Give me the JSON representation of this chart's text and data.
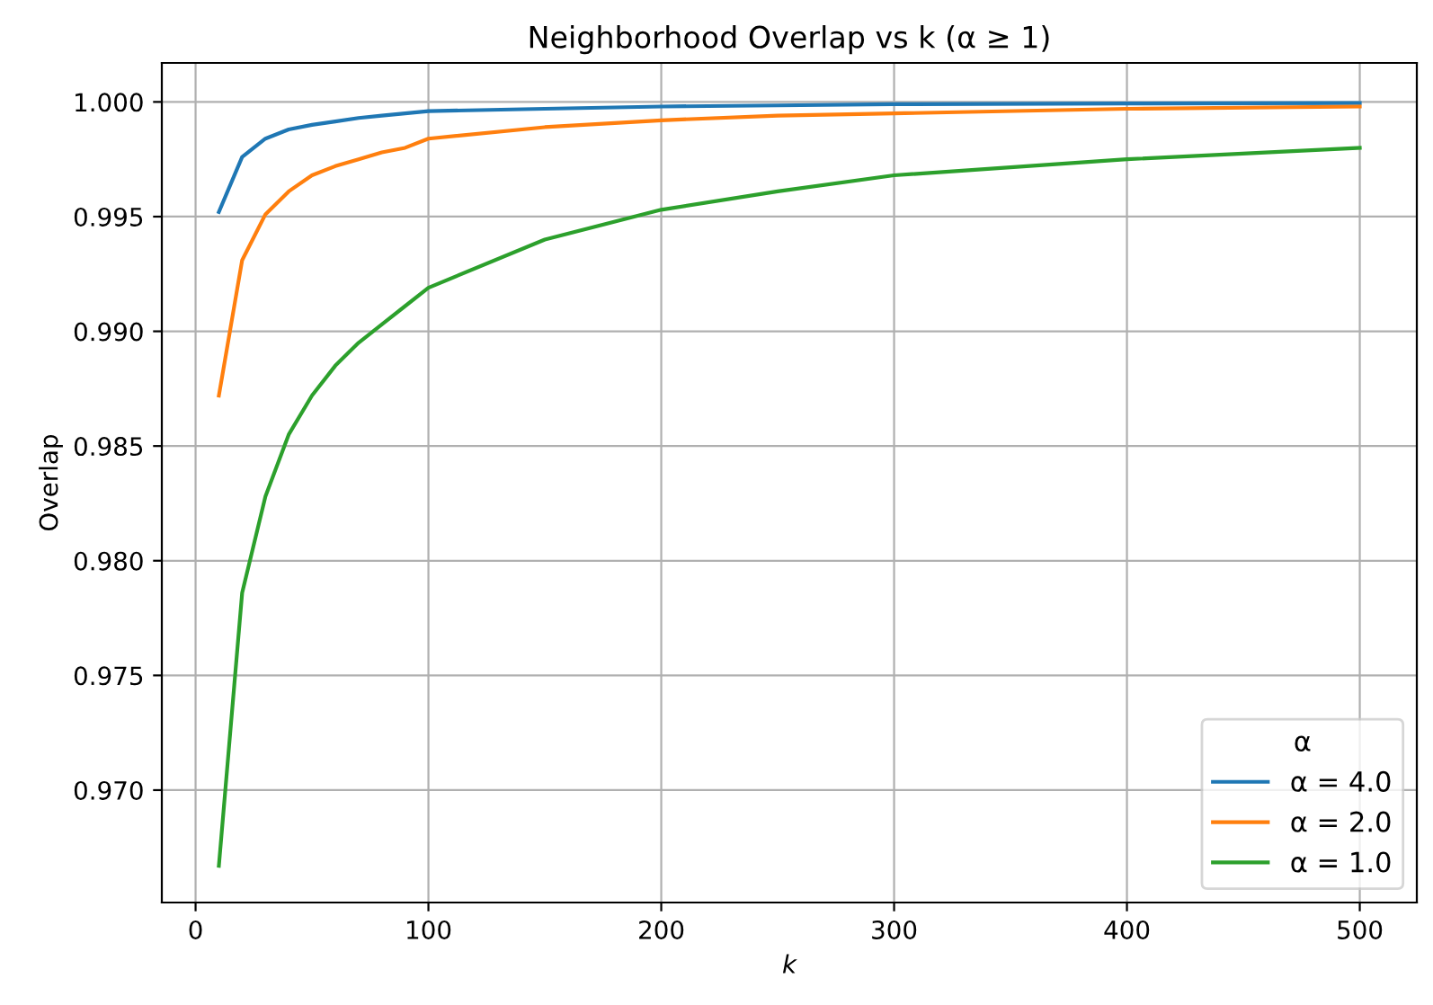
{
  "chart_data": {
    "type": "line",
    "title": "Neighborhood Overlap vs k (α ≥ 1)",
    "xlabel": "k",
    "ylabel": "Overlap",
    "legend_title": "α",
    "x": [
      10,
      20,
      30,
      40,
      50,
      60,
      70,
      80,
      90,
      100,
      150,
      200,
      250,
      300,
      400,
      500
    ],
    "series": [
      {
        "name": "α = 4.0",
        "color": "#1f77b4",
        "values": [
          0.9952,
          0.9976,
          0.9984,
          0.9988,
          0.999,
          0.99915,
          0.9993,
          0.9994,
          0.9995,
          0.9996,
          0.9997,
          0.9998,
          0.99985,
          0.9999,
          0.99993,
          0.99995
        ]
      },
      {
        "name": "α = 2.0",
        "color": "#ff7f0e",
        "values": [
          0.9872,
          0.9931,
          0.9951,
          0.9961,
          0.9968,
          0.9972,
          0.9975,
          0.9978,
          0.998,
          0.9984,
          0.9989,
          0.9992,
          0.9994,
          0.9995,
          0.9997,
          0.9998
        ]
      },
      {
        "name": "α = 1.0",
        "color": "#2ca02c",
        "values": [
          0.9667,
          0.9786,
          0.9828,
          0.9855,
          0.9872,
          0.9885,
          0.9895,
          0.9903,
          0.9911,
          0.9919,
          0.994,
          0.9953,
          0.9961,
          0.9968,
          0.9975,
          0.998
        ]
      }
    ],
    "xlim": [
      -14.5,
      524.5
    ],
    "ylim": [
      0.9651,
      1.0017
    ],
    "xticks": [
      0,
      100,
      200,
      300,
      400,
      500
    ],
    "yticks": [
      {
        "value": 0.97,
        "label": "0.970"
      },
      {
        "value": 0.975,
        "label": "0.975"
      },
      {
        "value": 0.98,
        "label": "0.980"
      },
      {
        "value": 0.985,
        "label": "0.985"
      },
      {
        "value": 0.99,
        "label": "0.990"
      },
      {
        "value": 0.995,
        "label": "0.995"
      },
      {
        "value": 1.0,
        "label": "1.000"
      }
    ],
    "grid": true,
    "legend": "bottom right",
    "marker": "none",
    "line_style": "solid"
  }
}
